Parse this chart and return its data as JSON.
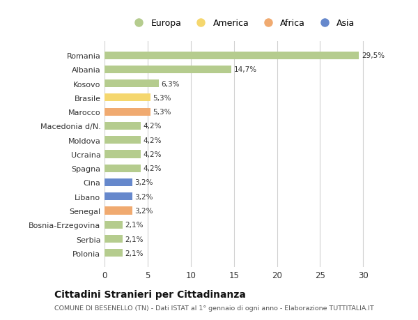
{
  "countries": [
    "Romania",
    "Albania",
    "Kosovo",
    "Brasile",
    "Marocco",
    "Macedonia d/N.",
    "Moldova",
    "Ucraina",
    "Spagna",
    "Cina",
    "Libano",
    "Senegal",
    "Bosnia-Erzegovina",
    "Serbia",
    "Polonia"
  ],
  "values": [
    29.5,
    14.7,
    6.3,
    5.3,
    5.3,
    4.2,
    4.2,
    4.2,
    4.2,
    3.2,
    3.2,
    3.2,
    2.1,
    2.1,
    2.1
  ],
  "labels": [
    "29,5%",
    "14,7%",
    "6,3%",
    "5,3%",
    "5,3%",
    "4,2%",
    "4,2%",
    "4,2%",
    "4,2%",
    "3,2%",
    "3,2%",
    "3,2%",
    "2,1%",
    "2,1%",
    "2,1%"
  ],
  "continents": [
    "Europa",
    "Europa",
    "Europa",
    "America",
    "Africa",
    "Europa",
    "Europa",
    "Europa",
    "Europa",
    "Asia",
    "Asia",
    "Africa",
    "Europa",
    "Europa",
    "Europa"
  ],
  "colors": {
    "Europa": "#b5cc8e",
    "America": "#f5d76e",
    "Africa": "#f0aa70",
    "Asia": "#6688cc"
  },
  "legend_order": [
    "Europa",
    "America",
    "Africa",
    "Asia"
  ],
  "legend_colors": [
    "#b5cc8e",
    "#f5d76e",
    "#f0aa70",
    "#6688cc"
  ],
  "xlim": [
    0,
    32
  ],
  "xticks": [
    0,
    5,
    10,
    15,
    20,
    25,
    30
  ],
  "title_main": "Cittadini Stranieri per Cittadinanza",
  "title_sub": "COMUNE DI BESENELLO (TN) - Dati ISTAT al 1° gennaio di ogni anno - Elaborazione TUTTITALIA.IT",
  "bg_color": "#ffffff",
  "grid_color": "#d0d0d0",
  "bar_height": 0.55
}
